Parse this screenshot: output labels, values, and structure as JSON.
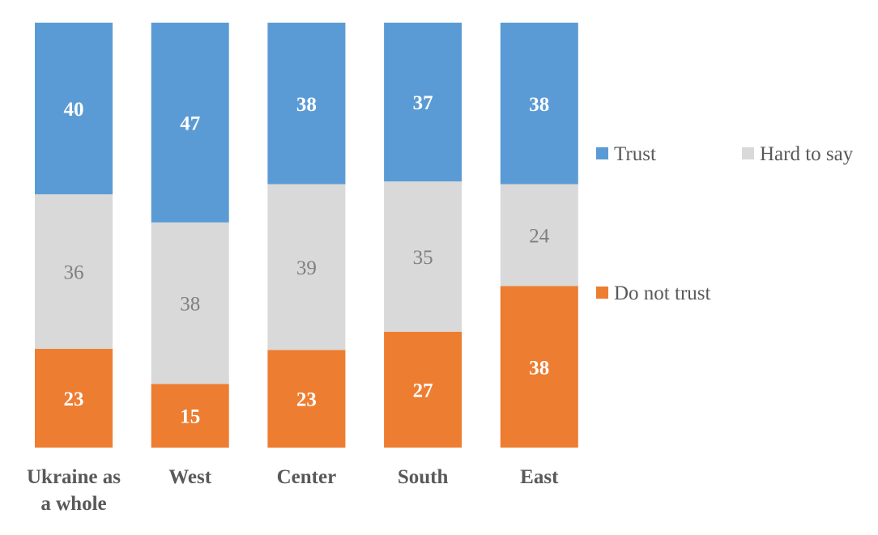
{
  "chart_data": {
    "type": "bar",
    "stacked": true,
    "orientation": "vertical",
    "title": "",
    "xlabel": "",
    "ylabel": "",
    "categories": [
      "Ukraine as a whole",
      "West",
      "Center",
      "South",
      "East"
    ],
    "category_lines": [
      [
        "Ukraine as",
        "a whole"
      ],
      [
        "West"
      ],
      [
        "Center"
      ],
      [
        "South"
      ],
      [
        "East"
      ]
    ],
    "series": [
      {
        "name": "Do not trust",
        "color": "#ed7d31",
        "label_color": "#ffffff",
        "label_bold": true,
        "values": [
          23,
          15,
          23,
          27,
          38
        ]
      },
      {
        "name": "Hard to say",
        "color": "#d9d9d9",
        "label_color": "#7f7f7f",
        "label_bold": false,
        "values": [
          36,
          38,
          39,
          35,
          24
        ]
      },
      {
        "name": "Trust",
        "color": "#5b9bd5",
        "label_color": "#ffffff",
        "label_bold": true,
        "values": [
          40,
          47,
          38,
          37,
          38
        ]
      }
    ],
    "ylim": [
      0,
      100
    ],
    "grid": false,
    "axis_visible": false,
    "legend": {
      "placement": "right",
      "order": [
        "Trust",
        "Hard to say",
        "Do not trust"
      ]
    }
  }
}
